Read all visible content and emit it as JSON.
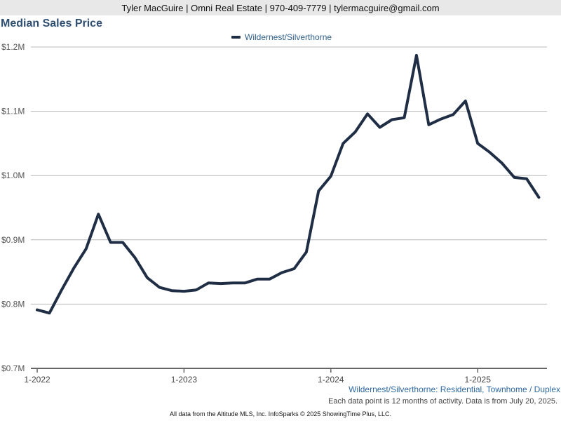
{
  "header": {
    "contact": "Tyler MacGuire | Omni Real Estate | 970-409-7779 | tylermacguire@gmail.com"
  },
  "footer": {
    "subtitle": "Wildernest/Silverthorne: Residential, Townhome / Duplex",
    "note": "Each data point is 12 months of activity. Data is from July 20, 2025.",
    "source": "All data from the Altitude MLS, Inc. InfoSparks © 2025 ShowingTime Plus, LLC."
  },
  "colors": {
    "series": "#1f2e45",
    "title": "#2f4f72",
    "grid": "#b8b8b8"
  },
  "chart_data": {
    "type": "line",
    "title": "Median Sales Price",
    "ylim": [
      0.7,
      1.2
    ],
    "y_unit": "$M",
    "yticks": [
      {
        "value": 0.7,
        "label": "$0.7M"
      },
      {
        "value": 0.8,
        "label": "$0.8M"
      },
      {
        "value": 0.9,
        "label": "$0.9M"
      },
      {
        "value": 1.0,
        "label": "$1.0M"
      },
      {
        "value": 1.1,
        "label": "$1.1M"
      },
      {
        "value": 1.2,
        "label": "$1.2M"
      }
    ],
    "xticks": [
      "1-2022",
      "1-2023",
      "1-2024",
      "1-2025"
    ],
    "grid": true,
    "legend_position": "top-center",
    "series": [
      {
        "name": "Wildernest/Silverthorne",
        "x": [
          "2022-01",
          "2022-02",
          "2022-03",
          "2022-04",
          "2022-05",
          "2022-06",
          "2022-07",
          "2022-08",
          "2022-09",
          "2022-10",
          "2022-11",
          "2022-12",
          "2023-01",
          "2023-02",
          "2023-03",
          "2023-04",
          "2023-05",
          "2023-06",
          "2023-07",
          "2023-08",
          "2023-09",
          "2023-10",
          "2023-11",
          "2023-12",
          "2024-01",
          "2024-02",
          "2024-03",
          "2024-04",
          "2024-05",
          "2024-06",
          "2024-07",
          "2024-08",
          "2024-09",
          "2024-10",
          "2024-11",
          "2024-12",
          "2025-01",
          "2025-02",
          "2025-03",
          "2025-04",
          "2025-05",
          "2025-06"
        ],
        "values": [
          0.791,
          0.786,
          0.822,
          0.856,
          0.886,
          0.94,
          0.896,
          0.896,
          0.872,
          0.841,
          0.826,
          0.821,
          0.82,
          0.822,
          0.833,
          0.832,
          0.833,
          0.833,
          0.839,
          0.839,
          0.849,
          0.855,
          0.881,
          0.976,
          0.999,
          1.05,
          1.068,
          1.096,
          1.075,
          1.087,
          1.09,
          1.187,
          1.079,
          1.088,
          1.095,
          1.116,
          1.05,
          1.036,
          1.019,
          0.997,
          0.995,
          0.966
        ]
      }
    ]
  }
}
